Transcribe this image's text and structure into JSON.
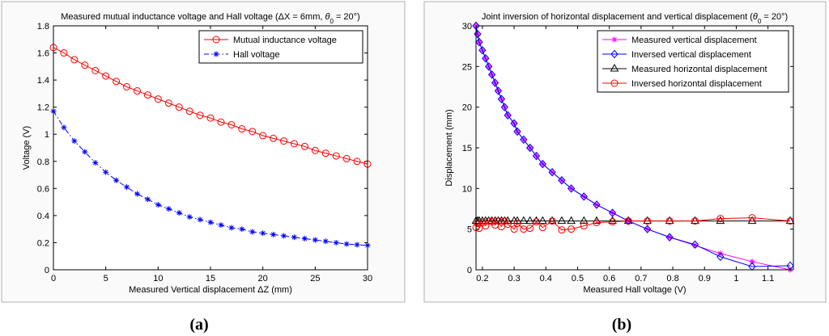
{
  "captions": {
    "a": "(a)",
    "b": "(b)"
  },
  "colors": {
    "red": "#ff0000",
    "blue": "#0000ff",
    "magenta": "#ff00ff",
    "black": "#000000"
  },
  "chart_data": [
    {
      "type": "line",
      "title": "Measured mutual inductance voltage and Hall voltage (ΔX = 6mm, θ0 = 20°)",
      "xlabel": "Measured Vertical displacement ΔZ (mm)",
      "ylabel": "Voltage (V)",
      "xlim": [
        0,
        30
      ],
      "ylim": [
        0,
        1.8
      ],
      "xticks": [
        0,
        5,
        10,
        15,
        20,
        25,
        30
      ],
      "yticks": [
        0,
        0.2,
        0.4,
        0.6,
        0.8,
        1,
        1.2,
        1.4,
        1.6,
        1.8
      ],
      "legend_position": "top-right",
      "series": [
        {
          "name": "Mutual inductance voltage",
          "color": "#ff0000",
          "marker": "circle",
          "dash": "solid",
          "x": [
            0,
            1,
            2,
            3,
            4,
            5,
            6,
            7,
            8,
            9,
            10,
            11,
            12,
            13,
            14,
            15,
            16,
            17,
            18,
            19,
            20,
            21,
            22,
            23,
            24,
            25,
            26,
            27,
            28,
            29,
            30
          ],
          "y": [
            1.64,
            1.6,
            1.55,
            1.51,
            1.47,
            1.43,
            1.39,
            1.35,
            1.32,
            1.29,
            1.26,
            1.23,
            1.2,
            1.17,
            1.14,
            1.12,
            1.09,
            1.07,
            1.04,
            1.02,
            0.99,
            0.97,
            0.95,
            0.93,
            0.91,
            0.88,
            0.86,
            0.84,
            0.82,
            0.8,
            0.78
          ]
        },
        {
          "name": "Hall voltage",
          "color": "#0000ff",
          "marker": "star",
          "dash": "dashdot",
          "x": [
            0,
            1,
            2,
            3,
            4,
            5,
            6,
            7,
            8,
            9,
            10,
            11,
            12,
            13,
            14,
            15,
            16,
            17,
            18,
            19,
            20,
            21,
            22,
            23,
            24,
            25,
            26,
            27,
            28,
            29,
            30
          ],
          "y": [
            1.17,
            1.05,
            0.95,
            0.87,
            0.79,
            0.72,
            0.66,
            0.61,
            0.56,
            0.52,
            0.48,
            0.45,
            0.42,
            0.39,
            0.37,
            0.35,
            0.33,
            0.31,
            0.3,
            0.28,
            0.27,
            0.26,
            0.25,
            0.24,
            0.23,
            0.22,
            0.21,
            0.2,
            0.19,
            0.185,
            0.18
          ]
        }
      ]
    },
    {
      "type": "line",
      "title": "Joint inversion of horizontal displacement and vertical displacement (θ0 = 20°)",
      "xlabel": "Measured Hall voltage (V)",
      "ylabel": "Displacement (mm)",
      "xlim": [
        0.18,
        1.18
      ],
      "ylim": [
        0,
        30
      ],
      "xticks": [
        0.2,
        0.3,
        0.4,
        0.5,
        0.6,
        0.7,
        0.8,
        0.9,
        1,
        1.1
      ],
      "yticks": [
        0,
        5,
        10,
        15,
        20,
        25,
        30
      ],
      "legend_position": "top-right",
      "series": [
        {
          "name": "Measured vertical displacement",
          "color": "#ff00ff",
          "marker": "star",
          "dash": "solid",
          "x": [
            0.18,
            0.185,
            0.19,
            0.2,
            0.21,
            0.22,
            0.23,
            0.24,
            0.25,
            0.26,
            0.27,
            0.28,
            0.3,
            0.31,
            0.33,
            0.35,
            0.37,
            0.39,
            0.42,
            0.45,
            0.48,
            0.52,
            0.56,
            0.61,
            0.66,
            0.72,
            0.79,
            0.87,
            0.95,
            1.05,
            1.17
          ],
          "y": [
            30,
            29,
            28,
            27,
            26,
            25,
            24,
            23,
            22,
            21,
            20,
            19,
            18,
            17,
            16,
            15,
            14,
            13,
            12,
            11,
            10,
            9,
            8,
            7,
            6,
            5,
            4,
            3,
            2,
            1,
            0
          ]
        },
        {
          "name": "Inversed vertical displacement",
          "color": "#0000ff",
          "marker": "diamond",
          "dash": "solid",
          "x": [
            0.18,
            0.185,
            0.19,
            0.2,
            0.21,
            0.22,
            0.23,
            0.24,
            0.25,
            0.26,
            0.27,
            0.28,
            0.3,
            0.31,
            0.33,
            0.35,
            0.37,
            0.39,
            0.42,
            0.45,
            0.48,
            0.52,
            0.56,
            0.61,
            0.66,
            0.72,
            0.79,
            0.87,
            0.95,
            1.05,
            1.17
          ],
          "y": [
            30,
            29,
            28,
            27,
            26,
            25,
            24,
            23,
            22,
            21,
            20,
            19,
            18,
            17,
            16,
            15,
            14,
            13,
            12,
            11,
            10,
            9,
            8,
            7,
            6,
            5,
            4,
            3.1,
            1.6,
            0.4,
            0.5
          ]
        },
        {
          "name": "Measured horizontal displacement",
          "color": "#000000",
          "marker": "triangle",
          "dash": "solid",
          "x": [
            0.18,
            0.185,
            0.19,
            0.2,
            0.21,
            0.22,
            0.23,
            0.24,
            0.25,
            0.26,
            0.27,
            0.28,
            0.3,
            0.31,
            0.33,
            0.35,
            0.37,
            0.39,
            0.42,
            0.45,
            0.48,
            0.52,
            0.56,
            0.61,
            0.66,
            0.72,
            0.79,
            0.87,
            0.95,
            1.05,
            1.17
          ],
          "y": [
            6,
            6,
            6,
            6,
            6,
            6,
            6,
            6,
            6,
            6,
            6,
            6,
            6,
            6,
            6,
            6,
            6,
            6,
            6,
            6,
            6,
            6,
            6,
            6,
            6,
            6,
            6,
            6,
            6,
            6,
            6
          ]
        },
        {
          "name": "Inversed horizontal displacement",
          "color": "#ff0000",
          "marker": "circle",
          "dash": "solid",
          "x": [
            0.18,
            0.185,
            0.19,
            0.2,
            0.21,
            0.22,
            0.23,
            0.24,
            0.25,
            0.26,
            0.27,
            0.28,
            0.3,
            0.31,
            0.33,
            0.35,
            0.37,
            0.39,
            0.42,
            0.45,
            0.48,
            0.52,
            0.56,
            0.61,
            0.66,
            0.72,
            0.79,
            0.87,
            0.95,
            1.05,
            1.17
          ],
          "y": [
            5.2,
            5.7,
            5.1,
            5.8,
            5.4,
            6,
            5.9,
            5.5,
            6,
            5.3,
            6,
            5.6,
            5,
            5.7,
            5,
            5.1,
            5.9,
            5.2,
            6,
            4.9,
            5,
            5.4,
            5.8,
            5.9,
            6,
            6,
            6,
            6,
            6.3,
            6.4,
            6
          ]
        }
      ]
    }
  ]
}
